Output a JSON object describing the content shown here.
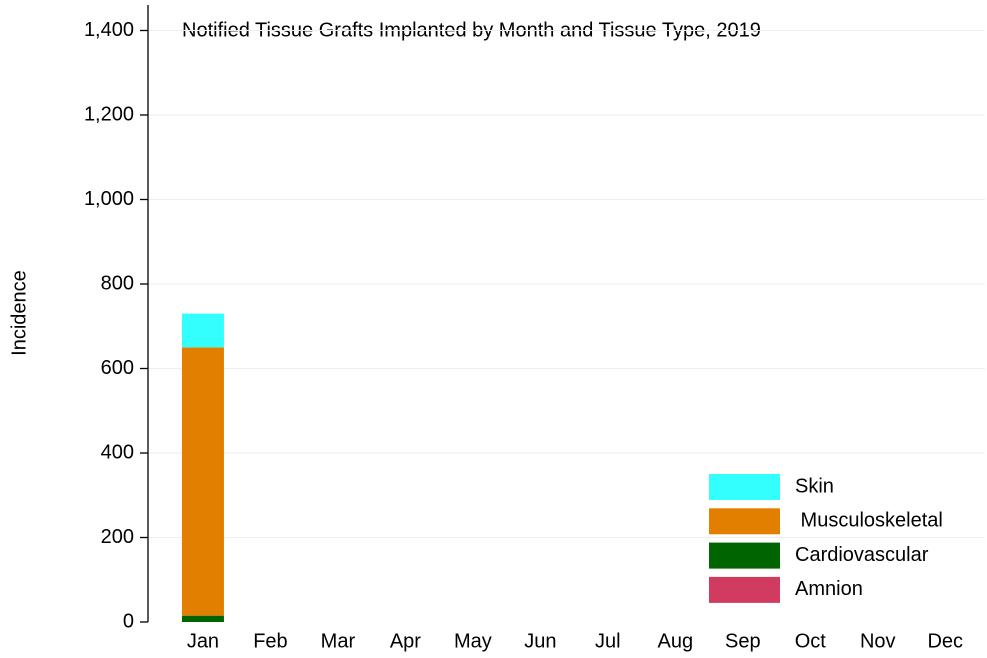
{
  "chart_data": {
    "type": "stacked_bar",
    "title": "Notified Tissue Grafts Implanted by Month and Tissue Type, 2019",
    "y_label": "Incidence",
    "categories": [
      "Jan",
      "Feb",
      "Mar",
      "Apr",
      "May",
      "Jun",
      "Jul",
      "Aug",
      "Sep",
      "Oct",
      "Nov",
      "Dec"
    ],
    "series": [
      {
        "name": "Amnion",
        "color": "#d13b60",
        "values": [
          0,
          null,
          null,
          null,
          null,
          null,
          null,
          null,
          null,
          null,
          null,
          null
        ]
      },
      {
        "name": "Cardiovascular",
        "color": "#006400",
        "values": [
          15,
          null,
          null,
          null,
          null,
          null,
          null,
          null,
          null,
          null,
          null,
          null
        ]
      },
      {
        "name": " Musculoskeletal",
        "color": "#e37f00",
        "values": [
          635,
          null,
          null,
          null,
          null,
          null,
          null,
          null,
          null,
          null,
          null,
          null
        ]
      },
      {
        "name": "Skin",
        "color": "#33ffff",
        "values": [
          80,
          null,
          null,
          null,
          null,
          null,
          null,
          null,
          null,
          null,
          null,
          null
        ]
      }
    ],
    "ylim": [
      0,
      1400
    ],
    "yticks": [
      0,
      200,
      400,
      600,
      800,
      {
        "value": 1000,
        "label": "1,000"
      },
      {
        "value": 1200,
        "label": "1,200"
      },
      {
        "value": 1400,
        "label": "1,400"
      }
    ],
    "grid": true,
    "legend_position": "lower right"
  }
}
